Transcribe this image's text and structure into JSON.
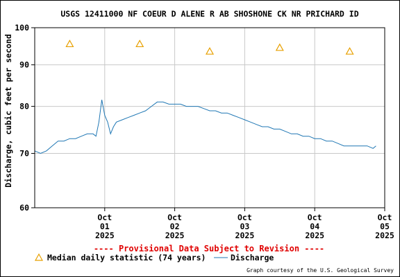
{
  "chart_data": {
    "type": "line",
    "title": "USGS 12411000 NF COEUR D ALENE R AB SHOSHONE CK NR PRICHARD ID",
    "ylabel": "Discharge, cubic feet per second",
    "ylim": [
      60,
      100
    ],
    "y_scale": "log",
    "yticks": [
      {
        "value": 60,
        "label": "60"
      },
      {
        "value": 70,
        "label": "70"
      },
      {
        "value": 80,
        "label": "80"
      },
      {
        "value": 90,
        "label": "90"
      },
      {
        "value": 100,
        "label": "100"
      }
    ],
    "xlim": [
      "2025-09-30T12:00",
      "2025-10-05T12:00"
    ],
    "xticks": [
      {
        "date": "2025-10-01",
        "line1": "Oct",
        "line2": "01",
        "line3": "2025"
      },
      {
        "date": "2025-10-02",
        "line1": "Oct",
        "line2": "02",
        "line3": "2025"
      },
      {
        "date": "2025-10-03",
        "line1": "Oct",
        "line2": "03",
        "line3": "2025"
      },
      {
        "date": "2025-10-04",
        "line1": "Oct",
        "line2": "04",
        "line3": "2025"
      },
      {
        "date": "2025-10-05",
        "line1": "Oct",
        "line2": "05",
        "line3": "2025"
      }
    ],
    "grid": true,
    "series": [
      {
        "name": "Discharge",
        "color": "#1f77b4",
        "points": [
          [
            "2025-09-30T12:00",
            70.5
          ],
          [
            "2025-09-30T14:00",
            70.0
          ],
          [
            "2025-09-30T16:00",
            70.5
          ],
          [
            "2025-09-30T18:00",
            71.5
          ],
          [
            "2025-09-30T20:00",
            72.5
          ],
          [
            "2025-09-30T22:00",
            72.5
          ],
          [
            "2025-10-01T00:00",
            73.0
          ],
          [
            "2025-10-01T02:00",
            73.0
          ],
          [
            "2025-10-01T04:00",
            73.5
          ],
          [
            "2025-10-01T06:00",
            74.0
          ],
          [
            "2025-10-01T08:00",
            74.0
          ],
          [
            "2025-10-01T09:00",
            73.5
          ],
          [
            "2025-10-01T10:00",
            76.5
          ],
          [
            "2025-10-01T11:00",
            81.5
          ],
          [
            "2025-10-01T12:00",
            78.0
          ],
          [
            "2025-10-01T13:00",
            76.5
          ],
          [
            "2025-10-01T14:00",
            74.0
          ],
          [
            "2025-10-01T15:00",
            75.5
          ],
          [
            "2025-10-01T16:00",
            76.5
          ],
          [
            "2025-10-01T18:00",
            77.0
          ],
          [
            "2025-10-01T20:00",
            77.5
          ],
          [
            "2025-10-01T22:00",
            78.0
          ],
          [
            "2025-10-02T00:00",
            78.5
          ],
          [
            "2025-10-02T02:00",
            79.0
          ],
          [
            "2025-10-02T04:00",
            80.0
          ],
          [
            "2025-10-02T06:00",
            81.0
          ],
          [
            "2025-10-02T08:00",
            81.0
          ],
          [
            "2025-10-02T10:00",
            80.5
          ],
          [
            "2025-10-02T12:00",
            80.5
          ],
          [
            "2025-10-02T14:00",
            80.5
          ],
          [
            "2025-10-02T16:00",
            80.0
          ],
          [
            "2025-10-02T18:00",
            80.0
          ],
          [
            "2025-10-02T20:00",
            80.0
          ],
          [
            "2025-10-02T22:00",
            79.5
          ],
          [
            "2025-10-03T00:00",
            79.0
          ],
          [
            "2025-10-03T02:00",
            79.0
          ],
          [
            "2025-10-03T04:00",
            78.5
          ],
          [
            "2025-10-03T06:00",
            78.5
          ],
          [
            "2025-10-03T08:00",
            78.0
          ],
          [
            "2025-10-03T10:00",
            77.5
          ],
          [
            "2025-10-03T12:00",
            77.0
          ],
          [
            "2025-10-03T14:00",
            76.5
          ],
          [
            "2025-10-03T16:00",
            76.0
          ],
          [
            "2025-10-03T18:00",
            75.5
          ],
          [
            "2025-10-03T20:00",
            75.5
          ],
          [
            "2025-10-03T22:00",
            75.0
          ],
          [
            "2025-10-04T00:00",
            75.0
          ],
          [
            "2025-10-04T02:00",
            74.5
          ],
          [
            "2025-10-04T04:00",
            74.0
          ],
          [
            "2025-10-04T06:00",
            74.0
          ],
          [
            "2025-10-04T08:00",
            73.5
          ],
          [
            "2025-10-04T10:00",
            73.5
          ],
          [
            "2025-10-04T12:00",
            73.0
          ],
          [
            "2025-10-04T14:00",
            73.0
          ],
          [
            "2025-10-04T16:00",
            72.5
          ],
          [
            "2025-10-04T18:00",
            72.5
          ],
          [
            "2025-10-04T20:00",
            72.0
          ],
          [
            "2025-10-04T22:00",
            71.5
          ],
          [
            "2025-10-05T00:00",
            71.5
          ],
          [
            "2025-10-05T02:00",
            71.5
          ],
          [
            "2025-10-05T04:00",
            71.5
          ],
          [
            "2025-10-05T06:00",
            71.5
          ],
          [
            "2025-10-05T08:00",
            71.0
          ],
          [
            "2025-10-05T09:00",
            71.5
          ]
        ]
      },
      {
        "name": "Median daily statistic (74 years)",
        "color": "#e8a000",
        "marker": "triangle",
        "points": [
          [
            "2025-10-01T00:00",
            95.5
          ],
          [
            "2025-10-02T00:00",
            95.5
          ],
          [
            "2025-10-03T00:00",
            93.5
          ],
          [
            "2025-10-04T00:00",
            94.5
          ],
          [
            "2025-10-05T00:00",
            93.5
          ]
        ]
      }
    ],
    "legend": {
      "placement": "bottom",
      "median_label": "Median daily statistic (74 years)",
      "discharge_label": "Discharge"
    },
    "provisional_note": "---- Provisional Data Subject to Revision ----",
    "credit": "Graph courtesy of the U.S. Geological Survey"
  }
}
